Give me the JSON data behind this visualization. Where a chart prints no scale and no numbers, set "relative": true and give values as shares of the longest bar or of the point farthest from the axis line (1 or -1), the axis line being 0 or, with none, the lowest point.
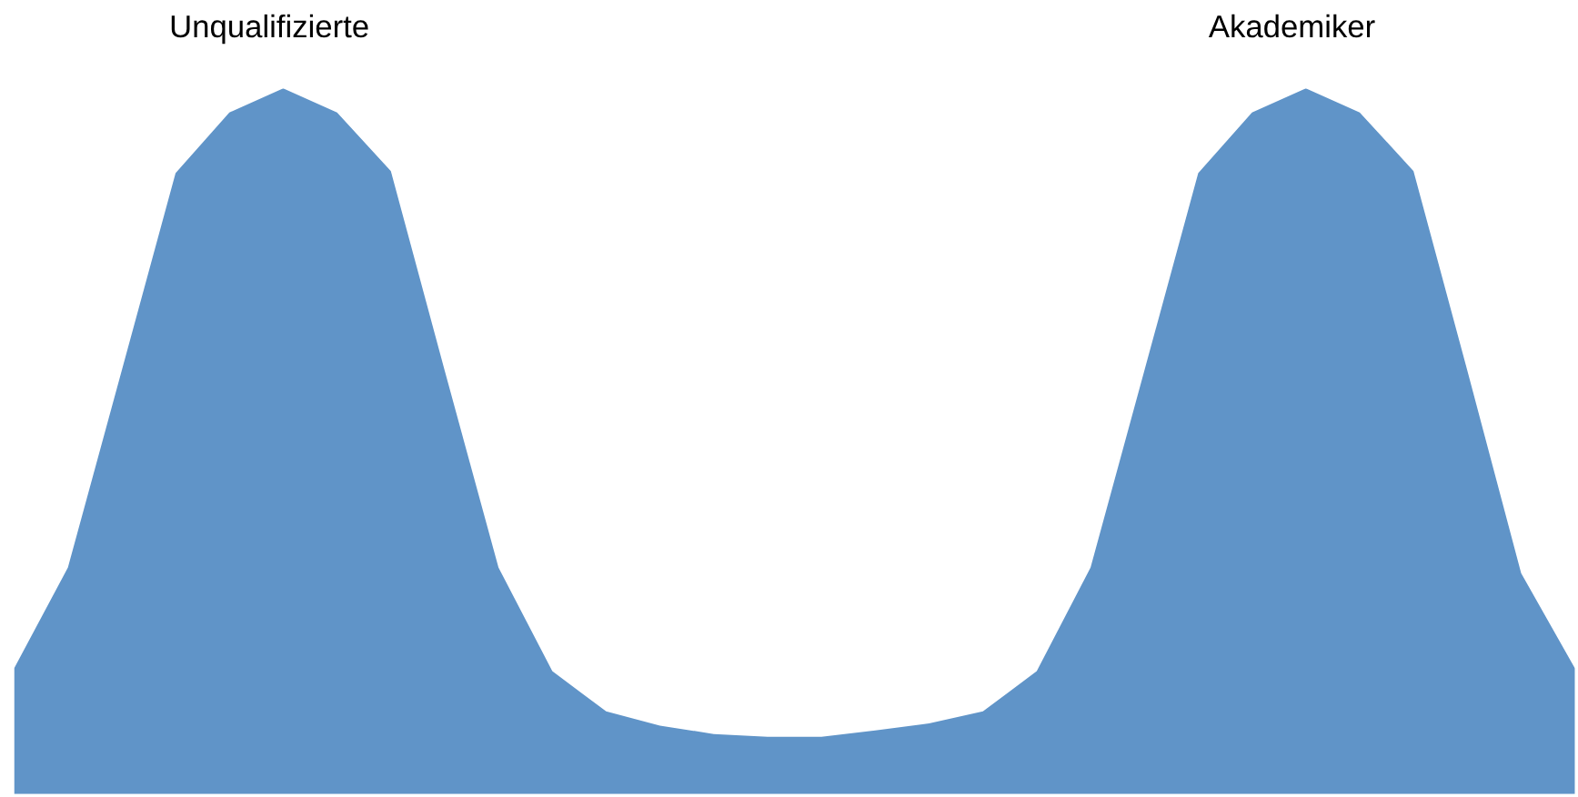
{
  "chart_data": {
    "type": "area",
    "relative": true,
    "color": "#6094c8",
    "categories": [
      null,
      null,
      null,
      null,
      null,
      null,
      null,
      null,
      null,
      null,
      null,
      null,
      null,
      null,
      null,
      null,
      null,
      null,
      null,
      null,
      null,
      null,
      null,
      null,
      null,
      null,
      null,
      null,
      null,
      null
    ],
    "values": [
      0.178,
      0.321,
      0.6,
      0.88,
      0.966,
      1.0,
      0.966,
      0.883,
      0.6,
      0.321,
      0.174,
      0.117,
      0.097,
      0.085,
      0.081,
      0.081,
      0.09,
      0.1,
      0.117,
      0.174,
      0.321,
      0.6,
      0.88,
      0.966,
      1.0,
      0.966,
      0.883,
      0.6,
      0.313,
      0.178
    ],
    "annotations": [
      "Unqualifizierte",
      "Akademiker"
    ]
  }
}
